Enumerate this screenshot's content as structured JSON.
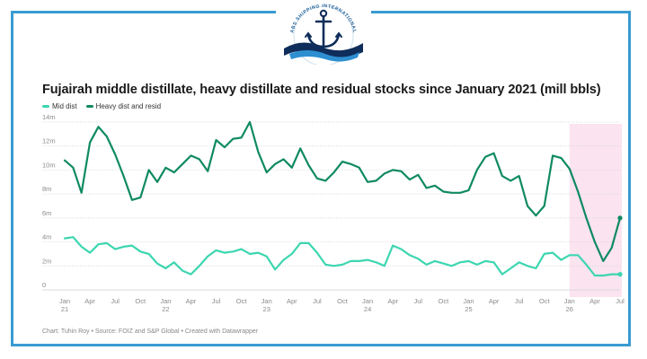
{
  "header": {
    "logo_text": "ABS SHIPPING INTERNATIONAL",
    "logo_icon": "anchor-icon"
  },
  "colors": {
    "frame": "#3a9bd1",
    "mid_dist": "#3cd6b0",
    "heavy_dist": "#0f8a61",
    "highlight": "#fbe3f0",
    "gridline": "#d8d8d8"
  },
  "chart_data": {
    "type": "line",
    "title": "Fujairah middle distillate, heavy distillate and residual stocks since January 2021 (mill bbls)",
    "source": "Chart: Tuhin Roy • Source: FOIZ and S&P Global • Created with Datawrapper",
    "y_tick_labels": [
      "0",
      "2m",
      "4m",
      "6m",
      "8m",
      "10m",
      "12m",
      "14m"
    ],
    "y_ticks": [
      0,
      2,
      4,
      6,
      8,
      10,
      12,
      14
    ],
    "ylim": [
      0,
      14
    ],
    "x_ticks": [
      {
        "label": "Jan",
        "year": "21",
        "x": 0
      },
      {
        "label": "Apr",
        "year": "",
        "x": 3
      },
      {
        "label": "Jul",
        "year": "",
        "x": 6
      },
      {
        "label": "Oct",
        "year": "",
        "x": 9
      },
      {
        "label": "Jan",
        "year": "22",
        "x": 12
      },
      {
        "label": "Apr",
        "year": "",
        "x": 15
      },
      {
        "label": "Jul",
        "year": "",
        "x": 18
      },
      {
        "label": "Oct",
        "year": "",
        "x": 21
      },
      {
        "label": "Jan",
        "year": "23",
        "x": 24
      },
      {
        "label": "Apr",
        "year": "",
        "x": 27
      },
      {
        "label": "Jul",
        "year": "",
        "x": 30
      },
      {
        "label": "Oct",
        "year": "",
        "x": 33
      },
      {
        "label": "Jan",
        "year": "24",
        "x": 36
      },
      {
        "label": "Apr",
        "year": "",
        "x": 39
      },
      {
        "label": "Jul",
        "year": "",
        "x": 42
      },
      {
        "label": "Oct",
        "year": "",
        "x": 45
      },
      {
        "label": "Jan",
        "year": "25",
        "x": 48
      },
      {
        "label": "Apr",
        "year": "",
        "x": 51
      },
      {
        "label": "Jul",
        "year": "",
        "x": 54
      },
      {
        "label": "Oct",
        "year": "",
        "x": 57
      },
      {
        "label": "Jan",
        "year": "26",
        "x": 60
      },
      {
        "label": "Apr",
        "year": "",
        "x": 63
      },
      {
        "label": "Jul",
        "year": "",
        "x": 66
      }
    ],
    "xlim": [
      0,
      66
    ],
    "highlight_range": [
      60,
      66
    ],
    "legend_placement": "top-left",
    "grid": true,
    "series": [
      {
        "name": "Mid dist",
        "color": "#3cd6b0",
        "values": [
          4.3,
          4.4,
          3.6,
          3.1,
          3.8,
          3.9,
          3.4,
          3.6,
          3.7,
          3.2,
          3.0,
          2.2,
          1.8,
          2.3,
          1.6,
          1.3,
          2.0,
          2.8,
          3.3,
          3.1,
          3.2,
          3.4,
          3.0,
          3.1,
          2.8,
          1.7,
          2.5,
          3.0,
          3.9,
          3.9,
          3.1,
          2.1,
          2.0,
          2.1,
          2.4,
          2.4,
          2.5,
          2.3,
          2.0,
          3.7,
          3.4,
          2.9,
          2.6,
          2.1,
          2.4,
          2.2,
          2.0,
          2.3,
          2.4,
          2.1,
          2.4,
          2.3,
          1.3,
          1.8,
          2.3,
          2.0,
          1.8,
          3.0,
          3.1,
          2.5,
          2.9,
          2.9,
          2.1,
          1.2,
          1.2,
          1.3,
          1.3
        ]
      },
      {
        "name": "Heavy dist and resid",
        "color": "#0f8a61",
        "values": [
          10.8,
          10.2,
          8.1,
          12.3,
          13.6,
          12.8,
          11.3,
          9.5,
          7.5,
          7.7,
          10.0,
          9.0,
          10.2,
          9.8,
          10.5,
          11.2,
          10.9,
          9.9,
          12.5,
          11.9,
          12.6,
          12.7,
          14.0,
          11.5,
          9.8,
          10.5,
          10.9,
          10.2,
          11.8,
          10.4,
          9.3,
          9.1,
          9.8,
          10.7,
          10.5,
          10.2,
          9.0,
          9.1,
          9.7,
          10.0,
          9.9,
          9.2,
          9.6,
          8.5,
          8.7,
          8.2,
          8.1,
          8.1,
          8.3,
          10.0,
          11.1,
          11.4,
          9.5,
          9.1,
          9.5,
          7.0,
          6.2,
          7.0,
          11.2,
          11.0,
          10.1,
          8.2,
          6.0,
          4.0,
          2.4,
          3.5,
          6.0
        ]
      }
    ]
  }
}
